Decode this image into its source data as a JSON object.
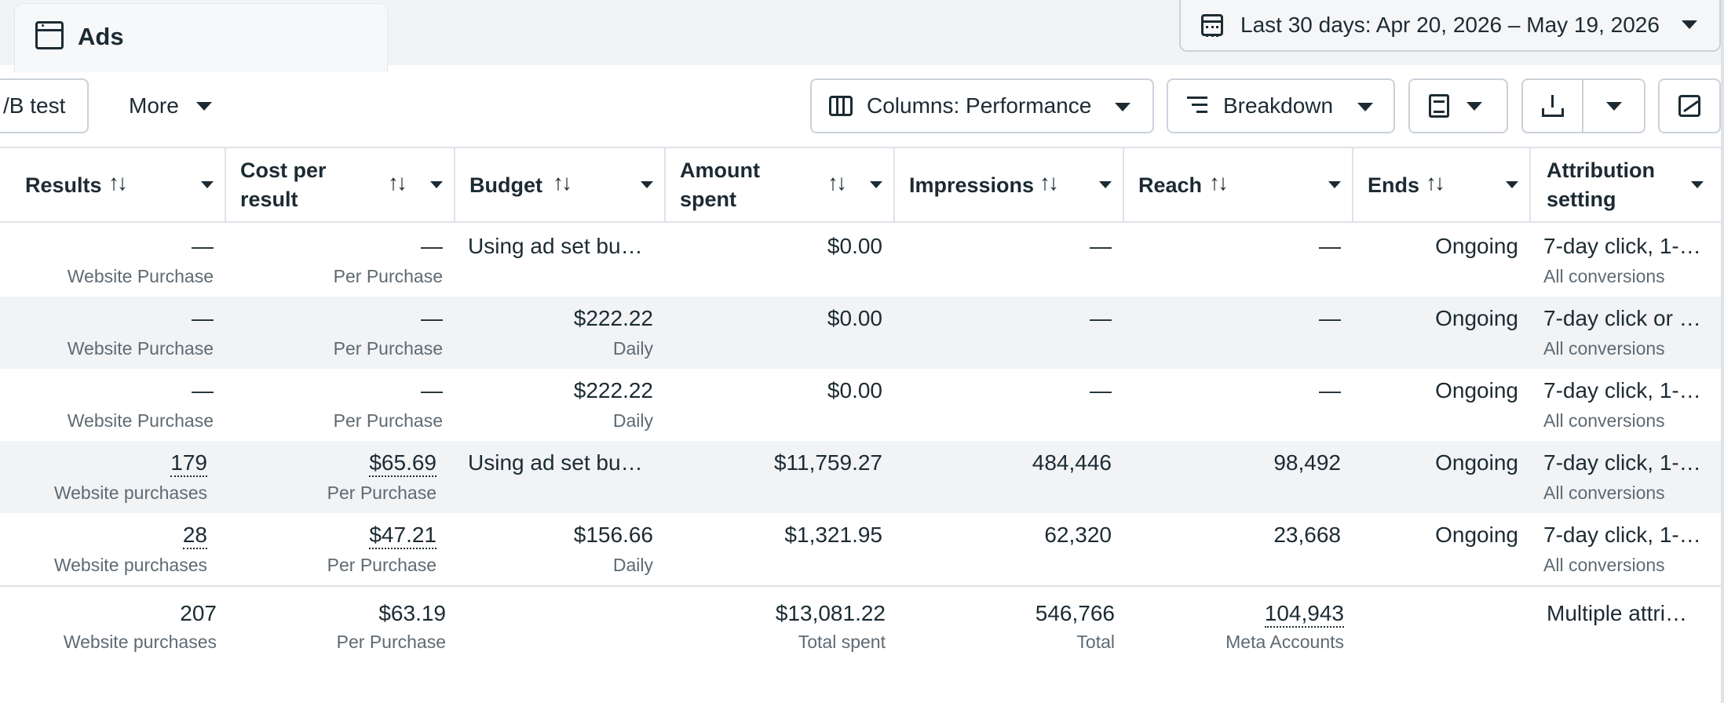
{
  "tab": {
    "label": "Ads",
    "icon": "window-icon"
  },
  "date_range": {
    "label": "Last 30 days: Apr 20, 2026 – May 19, 2026",
    "icon": "calendar-icon"
  },
  "toolbar": {
    "ab_test_label": "/B test",
    "more_label": "More",
    "columns_label": "Columns: Performance",
    "breakdown_label": "Breakdown"
  },
  "columns": [
    {
      "key": "results",
      "label": "Results"
    },
    {
      "key": "cost_per_result",
      "label_line1": "Cost per",
      "label_line2": "result"
    },
    {
      "key": "budget",
      "label": "Budget"
    },
    {
      "key": "amount_spent",
      "label_line1": "Amount",
      "label_line2": "spent"
    },
    {
      "key": "impressions",
      "label": "Impressions"
    },
    {
      "key": "reach",
      "label": "Reach"
    },
    {
      "key": "ends",
      "label": "Ends"
    },
    {
      "key": "attribution",
      "label_line1": "Attribution",
      "label_line2": "setting"
    }
  ],
  "sort_glyph": "↑↓",
  "rows": [
    {
      "results": "—",
      "results_sub": "Website Purchase",
      "cpr": "—",
      "cpr_sub": "Per Purchase",
      "budget": "Using ad set bu…",
      "budget_sub": "",
      "spent": "$0.00",
      "impressions": "—",
      "reach": "—",
      "ends": "Ongoing",
      "attribution": "7-day click, 1-…",
      "attribution_sub": "All conversions"
    },
    {
      "results": "—",
      "results_sub": "Website Purchase",
      "cpr": "—",
      "cpr_sub": "Per Purchase",
      "budget": "$222.22",
      "budget_sub": "Daily",
      "spent": "$0.00",
      "impressions": "—",
      "reach": "—",
      "ends": "Ongoing",
      "attribution": "7-day click or …",
      "attribution_sub": "All conversions"
    },
    {
      "results": "—",
      "results_sub": "Website Purchase",
      "cpr": "—",
      "cpr_sub": "Per Purchase",
      "budget": "$222.22",
      "budget_sub": "Daily",
      "spent": "$0.00",
      "impressions": "—",
      "reach": "—",
      "ends": "Ongoing",
      "attribution": "7-day click, 1-…",
      "attribution_sub": "All conversions"
    },
    {
      "results": "179",
      "results_sub": "Website purchases",
      "cpr": "$65.69",
      "cpr_sub": "Per Purchase",
      "budget": "Using ad set bu…",
      "budget_sub": "",
      "spent": "$11,759.27",
      "impressions": "484,446",
      "reach": "98,492",
      "ends": "Ongoing",
      "attribution": "7-day click, 1-…",
      "attribution_sub": "All conversions"
    },
    {
      "results": "28",
      "results_sub": "Website purchases",
      "cpr": "$47.21",
      "cpr_sub": "Per Purchase",
      "budget": "$156.66",
      "budget_sub": "Daily",
      "spent": "$1,321.95",
      "impressions": "62,320",
      "reach": "23,668",
      "ends": "Ongoing",
      "attribution": "7-day click, 1-…",
      "attribution_sub": "All conversions"
    }
  ],
  "totals": {
    "results": "207",
    "results_sub": "Website purchases",
    "cpr": "$63.19",
    "cpr_sub": "Per Purchase",
    "spent": "$13,081.22",
    "spent_sub": "Total spent",
    "impressions": "546,766",
    "impressions_sub": "Total",
    "reach": "104,943",
    "reach_sub": "Meta Accounts",
    "attribution": "Multiple attri…"
  },
  "colors": {
    "text": "#1c2b33",
    "muted": "#5e6a73",
    "border": "#cbd2d9",
    "row_alt": "#f1f3f5",
    "top_bg": "#f1f4f7"
  }
}
